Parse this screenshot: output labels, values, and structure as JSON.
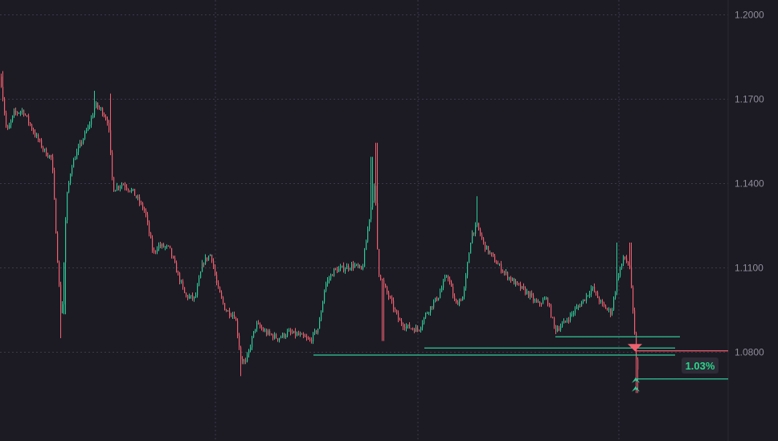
{
  "colors": {
    "background": "#1c1b24",
    "grid": "#3a3946",
    "up": "#2fc999",
    "down": "#f0606e",
    "axis_text": "#8f8e99",
    "badge_bg": "#2c2b36",
    "badge_text": "#29d68b"
  },
  "chart_data": {
    "type": "candlestick",
    "y_axis": {
      "ticks": [
        "1.2000",
        "1.1700",
        "1.1400",
        "1.1100",
        "1.0800"
      ],
      "tick_values": [
        1.2,
        1.17,
        1.14,
        1.11,
        1.08
      ],
      "range": [
        1.0555,
        1.2045
      ]
    },
    "x_gridlines": 4,
    "grid": true,
    "path_anchors": [
      [
        0,
        1.178
      ],
      [
        8,
        1.158
      ],
      [
        17,
        1.165
      ],
      [
        28,
        1.166
      ],
      [
        42,
        1.158
      ],
      [
        56,
        1.151
      ],
      [
        64,
        1.149
      ],
      [
        72,
        1.108
      ],
      [
        76,
        1.09
      ],
      [
        82,
        1.134
      ],
      [
        88,
        1.146
      ],
      [
        98,
        1.153
      ],
      [
        106,
        1.158
      ],
      [
        112,
        1.162
      ],
      [
        118,
        1.168
      ],
      [
        126,
        1.166
      ],
      [
        134,
        1.162
      ],
      [
        140,
        1.138
      ],
      [
        152,
        1.14
      ],
      [
        165,
        1.137
      ],
      [
        180,
        1.13
      ],
      [
        190,
        1.115
      ],
      [
        196,
        1.118
      ],
      [
        210,
        1.117
      ],
      [
        218,
        1.11
      ],
      [
        230,
        1.1
      ],
      [
        242,
        1.099
      ],
      [
        252,
        1.112
      ],
      [
        262,
        1.115
      ],
      [
        270,
        1.103
      ],
      [
        280,
        1.095
      ],
      [
        292,
        1.093
      ],
      [
        299,
        1.078
      ],
      [
        305,
        1.076
      ],
      [
        318,
        1.09
      ],
      [
        330,
        1.087
      ],
      [
        345,
        1.085
      ],
      [
        358,
        1.087
      ],
      [
        372,
        1.086
      ],
      [
        385,
        1.084
      ],
      [
        396,
        1.089
      ],
      [
        404,
        1.104
      ],
      [
        415,
        1.109
      ],
      [
        428,
        1.11
      ],
      [
        440,
        1.111
      ],
      [
        450,
        1.109
      ],
      [
        460,
        1.13
      ],
      [
        466,
        1.14
      ],
      [
        470,
        1.109
      ],
      [
        478,
        1.103
      ],
      [
        486,
        1.098
      ],
      [
        496,
        1.091
      ],
      [
        506,
        1.089
      ],
      [
        520,
        1.088
      ],
      [
        530,
        1.094
      ],
      [
        545,
        1.1
      ],
      [
        556,
        1.108
      ],
      [
        566,
        1.097
      ],
      [
        576,
        1.1
      ],
      [
        586,
        1.122
      ],
      [
        593,
        1.125
      ],
      [
        602,
        1.118
      ],
      [
        614,
        1.113
      ],
      [
        628,
        1.108
      ],
      [
        642,
        1.104
      ],
      [
        656,
        1.101
      ],
      [
        668,
        1.097
      ],
      [
        680,
        1.099
      ],
      [
        690,
        1.088
      ],
      [
        700,
        1.09
      ],
      [
        712,
        1.094
      ],
      [
        724,
        1.098
      ],
      [
        736,
        1.103
      ],
      [
        748,
        1.097
      ],
      [
        760,
        1.094
      ],
      [
        768,
        1.107
      ],
      [
        776,
        1.114
      ],
      [
        783,
        1.11
      ],
      [
        787,
        1.094
      ],
      [
        791,
        1.078
      ],
      [
        794,
        1.071
      ]
    ],
    "spikes": [
      {
        "x": 3,
        "high": 1.18
      },
      {
        "x": 75,
        "low": 1.085
      },
      {
        "x": 80,
        "low": 1.0935
      },
      {
        "x": 117,
        "high": 1.173
      },
      {
        "x": 137,
        "high": 1.172
      },
      {
        "x": 299,
        "low": 1.0715
      },
      {
        "x": 462,
        "high": 1.1495
      },
      {
        "x": 468,
        "high": 1.1545
      },
      {
        "x": 476,
        "low": 1.084
      },
      {
        "x": 593,
        "high": 1.1355
      },
      {
        "x": 767,
        "high": 1.119
      },
      {
        "x": 784,
        "high": 1.119
      },
      {
        "x": 792,
        "low": 1.0655
      }
    ],
    "horizontal_levels": [
      {
        "from_x": 691,
        "to_x": 846,
        "y": 1.0855,
        "color": "#2fc999"
      },
      {
        "from_x": 528,
        "to_x": 840,
        "y": 1.0815,
        "color": "#2fc999"
      },
      {
        "from_x": 390,
        "to_x": 840,
        "y": 1.079,
        "color": "#2fc999"
      },
      {
        "from_x": 790,
        "to_x": 906,
        "y": 1.0805,
        "color": "#f0606e"
      },
      {
        "from_x": 790,
        "to_x": 906,
        "y": 1.0705,
        "color": "#2fc999"
      }
    ],
    "markers": [
      {
        "type": "sell-arrow",
        "x": 790,
        "y": 1.0815,
        "color": "#f0606e"
      },
      {
        "type": "buy-arrow",
        "x": 791,
        "y": 1.0702,
        "color": "#2fc999"
      },
      {
        "type": "buy-arrow",
        "x": 791,
        "y": 1.0671,
        "color": "#2fc999"
      }
    ],
    "badge": {
      "text": "1.03%",
      "y": 1.0753
    }
  }
}
